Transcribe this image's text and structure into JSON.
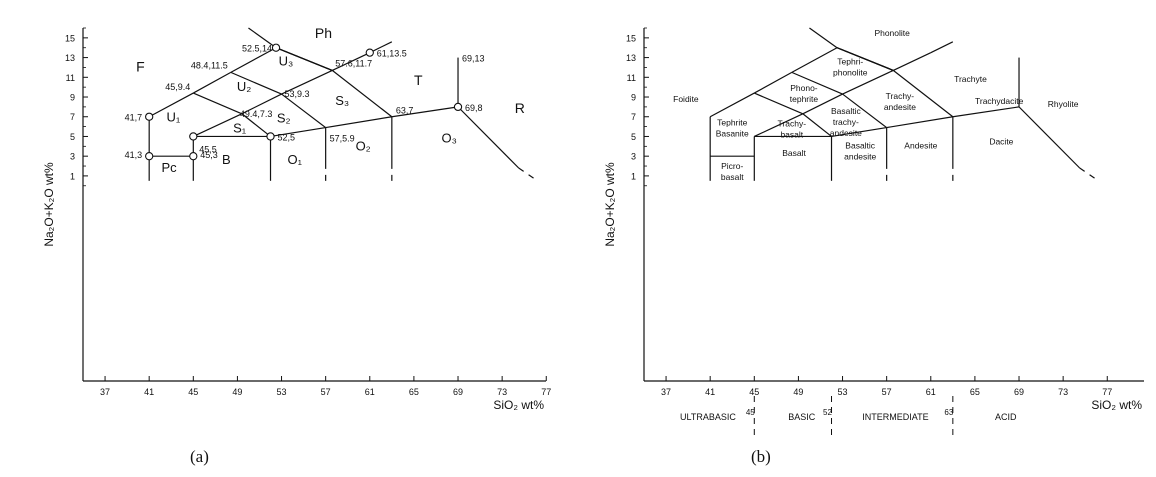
{
  "panels": [
    {
      "caption": "(a)",
      "xlabel": "SiO₂ wt%",
      "ylabel": "Na₂O+K₂O wt%",
      "x_ticks": [
        "37",
        "41",
        "45",
        "49",
        "53",
        "57",
        "61",
        "65",
        "69",
        "73",
        "77"
      ],
      "y_ticks": [
        "1",
        "3",
        "5",
        "7",
        "9",
        "11",
        "13",
        "15"
      ],
      "field_labels": [
        "F",
        "Ph",
        "U₃",
        "U₂",
        "U₁",
        "S₁",
        "S₂",
        "S₃",
        "T",
        "R",
        "Pc",
        "B",
        "O₁",
        "O₂",
        "O₃"
      ],
      "point_labels": [
        "52.5,14",
        "61,13.5",
        "69,13",
        "48.4,11.5",
        "57.6,11.7",
        "45,9.4",
        "53,9.3",
        "49.4,7.3",
        "41,7",
        "63,7",
        "69,8",
        "45,5",
        "52,5",
        "57,5.9",
        "41,3",
        "45,3"
      ]
    },
    {
      "caption": "(b)",
      "xlabel": "SiO₂ wt%",
      "ylabel": "Na₂O+K₂O wt%",
      "x_ticks": [
        "37",
        "41",
        "45",
        "49",
        "53",
        "57",
        "61",
        "65",
        "69",
        "73",
        "77"
      ],
      "y_ticks": [
        "1",
        "3",
        "5",
        "7",
        "9",
        "11",
        "13",
        "15"
      ],
      "rock_names": [
        "Phonolite",
        "Tephri-|phonolite",
        "Trachyte",
        "Phono-|tephrite",
        "Foidite",
        "Trachy-|andesite",
        "Trachydacite",
        "Rhyolite",
        "Basaltic|trachy-|andesite",
        "Tephrite|Basanite",
        "Trachy-|basalt",
        "Basaltic|andesite",
        "Andesite",
        "Dacite",
        "Basalt",
        "Picro-|basalt"
      ],
      "classes": [
        {
          "name": "ULTRABASIC",
          "boundary": "45"
        },
        {
          "name": "BASIC",
          "boundary": "52"
        },
        {
          "name": "INTERMEDIATE",
          "boundary": "63"
        },
        {
          "name": "ACID",
          "boundary": ""
        }
      ]
    }
  ]
}
